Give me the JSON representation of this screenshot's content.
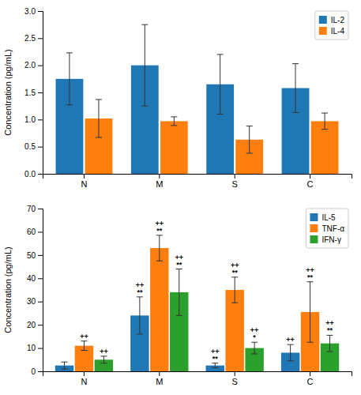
{
  "chart_data": [
    {
      "type": "bar",
      "categories": [
        "N",
        "M",
        "S",
        "C"
      ],
      "series": [
        {
          "name": "IL-2",
          "values": [
            1.75,
            2.0,
            1.65,
            1.58
          ],
          "errors": [
            0.48,
            0.75,
            0.55,
            0.45
          ]
        },
        {
          "name": "IL-4",
          "values": [
            1.02,
            0.97,
            0.63,
            0.97
          ],
          "errors": [
            0.35,
            0.08,
            0.25,
            0.15
          ]
        }
      ],
      "ylabel": "Concentration (pg/mL)",
      "ylim": [
        0,
        3.0
      ],
      "yticks": [
        {
          "value": 0,
          "label": "0.0"
        },
        0.5,
        {
          "value": 1.0,
          "label": "1.0"
        },
        1.5,
        {
          "value": 2.0,
          "label": "2.0"
        },
        2.5,
        {
          "value": 3.0,
          "label": "3.0"
        }
      ],
      "legend": "upper right",
      "grid": false
    },
    {
      "type": "bar",
      "categories": [
        "N",
        "M",
        "S",
        "C"
      ],
      "series": [
        {
          "name": "IL-5",
          "values": [
            2.5,
            24.0,
            2.5,
            8.0
          ],
          "errors": [
            1.5,
            8.0,
            1.0,
            3.5
          ]
        },
        {
          "name": "TNF-α",
          "values": [
            11.0,
            53.0,
            35.0,
            25.5
          ],
          "errors": [
            2.0,
            5.5,
            5.5,
            13.0
          ]
        },
        {
          "name": "IFN-γ",
          "values": [
            5.0,
            34.0,
            10.0,
            12.0
          ],
          "errors": [
            1.5,
            10.0,
            2.5,
            3.5
          ]
        }
      ],
      "ylabel": "Concentration (pg/mL)",
      "ylim": [
        0,
        70
      ],
      "yticks": [
        0,
        10,
        20,
        30,
        40,
        50,
        60,
        70
      ],
      "legend": "upper right",
      "grid": false,
      "annotations": [
        {
          "category": "N",
          "series": "TNF-α",
          "lines": [
            "++"
          ]
        },
        {
          "category": "N",
          "series": "IFN-γ",
          "lines": [
            "++"
          ]
        },
        {
          "category": "M",
          "series": "IL-5",
          "lines": [
            "**",
            "++"
          ]
        },
        {
          "category": "M",
          "series": "TNF-α",
          "lines": [
            "**",
            "++"
          ]
        },
        {
          "category": "M",
          "series": "IFN-γ",
          "lines": [
            "**",
            "++"
          ]
        },
        {
          "category": "S",
          "series": "IL-5",
          "lines": [
            "**",
            "++"
          ]
        },
        {
          "category": "S",
          "series": "TNF-α",
          "lines": [
            "**",
            "++"
          ]
        },
        {
          "category": "S",
          "series": "IFN-γ",
          "lines": [
            "*",
            "++"
          ]
        },
        {
          "category": "C",
          "series": "IL-5",
          "lines": [
            "++"
          ]
        },
        {
          "category": "C",
          "series": "TNF-α",
          "lines": [
            "**",
            "++"
          ]
        },
        {
          "category": "C",
          "series": "IFN-γ",
          "lines": [
            "**",
            "++"
          ]
        }
      ]
    }
  ]
}
